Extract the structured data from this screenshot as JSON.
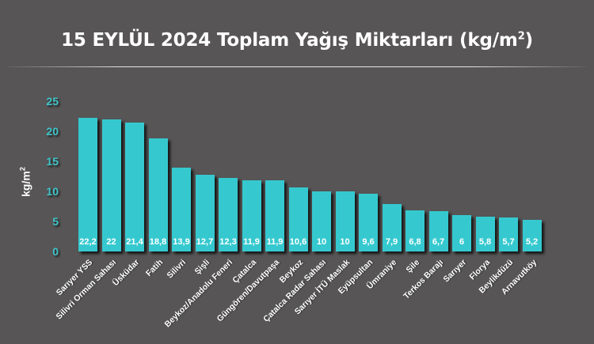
{
  "header": {
    "title": "15 EYLÜL 2024 Toplam Yağış Miktarları (kg/m",
    "title_sup": "2",
    "title_end": ")"
  },
  "axis": {
    "ylabel": "kg/m",
    "ylabel_sup": "2",
    "ticks": [
      "25",
      "20",
      "15",
      "10",
      "5",
      "0"
    ]
  },
  "colors": {
    "background": "#575556",
    "bar": "#35c9cf",
    "tick": "#3ec4c9",
    "text": "#ffffff"
  },
  "chart_data": {
    "type": "bar",
    "title": "15 EYLÜL 2024 Toplam Yağış Miktarları (kg/m²)",
    "xlabel": "",
    "ylabel": "kg/m²",
    "ylim": [
      0,
      25
    ],
    "yticks": [
      0,
      5,
      10,
      15,
      20,
      25
    ],
    "grid": false,
    "legend": null,
    "categories": [
      "Sarıyer YSS",
      "Silivri Orman Sahası",
      "Üsküdar",
      "Fatih",
      "Silivri",
      "Şişli",
      "Beykoz/Anadolu Feneri",
      "Çatalca",
      "Güngören/Davutpaşa",
      "Beykoz",
      "Çatalca Radar Sahası",
      "Sarıyer İTÜ Maslak",
      "Eyüpsultan",
      "Ümraniye",
      "Şile",
      "Terkos Barajı",
      "Sarıyer",
      "Florya",
      "Beylikdüzü",
      "Arnavutköy"
    ],
    "values": [
      22.2,
      22,
      21.4,
      18.8,
      13.9,
      12.7,
      12.3,
      11.9,
      11.9,
      10.6,
      10,
      10,
      9.6,
      7.9,
      6.8,
      6.7,
      6,
      5.8,
      5.7,
      5.2
    ],
    "value_labels": [
      "22,2",
      "22",
      "21,4",
      "18,8",
      "13,9",
      "12,7",
      "12,3",
      "11,9",
      "11,9",
      "10,6",
      "10",
      "10",
      "9,6",
      "7,9",
      "6,8",
      "6,7",
      "6",
      "5,8",
      "5,7",
      "5,2"
    ]
  }
}
